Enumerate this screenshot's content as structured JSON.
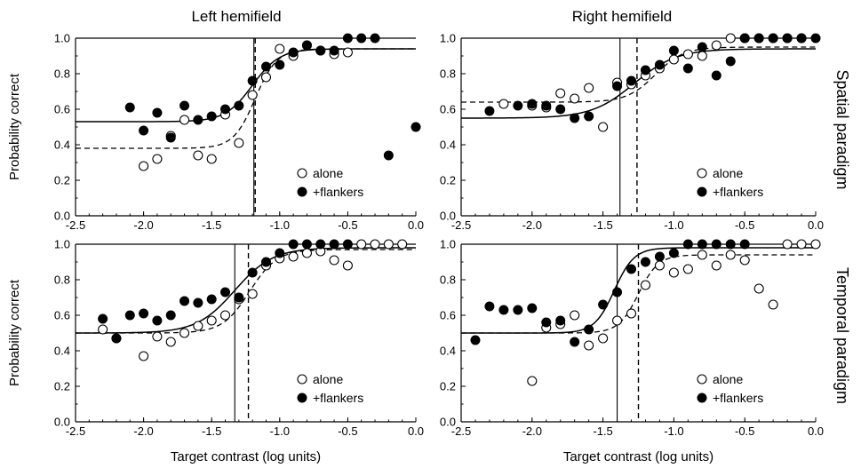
{
  "header": {
    "col_titles": [
      "Left hemifield",
      "Right hemifield"
    ],
    "row_titles": [
      "Spatial paradigm",
      "Temporal paradigm"
    ]
  },
  "colors": {
    "ink": "#000000",
    "background": "#ffffff"
  },
  "chart_data": [
    {
      "type": "scatter",
      "title": "",
      "xlabel": "",
      "ylabel": "Probability correct",
      "xlim": [
        -2.5,
        0.0
      ],
      "ylim": [
        0.0,
        1.0
      ],
      "xticks": [
        "-2.5",
        "-2.0",
        "-1.5",
        "-1.0",
        "-0.5",
        "0.0"
      ],
      "yticks": [
        "0.0",
        "0.2",
        "0.4",
        "0.6",
        "0.8",
        "1.0"
      ],
      "legend": {
        "position": "bottom-right",
        "items": [
          "alone",
          "+flankers"
        ]
      },
      "series": [
        {
          "name": "alone",
          "marker": "open-circle",
          "x": [
            -2.0,
            -1.9,
            -1.8,
            -1.7,
            -1.6,
            -1.5,
            -1.4,
            -1.3,
            -1.2,
            -1.1,
            -1.0,
            -0.9,
            -0.8,
            -0.7,
            -0.6,
            -0.5
          ],
          "y": [
            0.28,
            0.32,
            0.45,
            0.54,
            0.34,
            0.32,
            0.57,
            0.41,
            0.68,
            0.78,
            0.94,
            0.9,
            0.96,
            0.93,
            0.91,
            0.92
          ]
        },
        {
          "name": "+flankers",
          "marker": "filled-circle",
          "x": [
            -2.1,
            -2.0,
            -1.9,
            -1.8,
            -1.7,
            -1.6,
            -1.5,
            -1.4,
            -1.3,
            -1.2,
            -1.1,
            -1.0,
            -0.9,
            -0.8,
            -0.7,
            -0.6,
            -0.5,
            -0.4,
            -0.3,
            -0.2,
            0.0
          ],
          "y": [
            0.61,
            0.48,
            0.58,
            0.44,
            0.62,
            0.54,
            0.56,
            0.6,
            0.62,
            0.76,
            0.84,
            0.85,
            0.92,
            0.96,
            0.93,
            0.93,
            1.0,
            1.0,
            1.0,
            0.34,
            0.5
          ]
        }
      ],
      "fits": [
        {
          "series": "alone",
          "style": "dashed",
          "lower": 0.38,
          "upper": 0.94,
          "midpoint": -1.18,
          "scale": 0.08
        },
        {
          "series": "+flankers",
          "style": "solid",
          "lower": 0.53,
          "upper": 0.94,
          "midpoint": -1.2,
          "scale": 0.1
        }
      ],
      "thresholds": [
        {
          "series": "+flankers",
          "style": "solid",
          "x": -1.19
        },
        {
          "series": "alone",
          "style": "dashed",
          "x": -1.18
        }
      ]
    },
    {
      "type": "scatter",
      "title": "",
      "xlabel": "",
      "ylabel": "",
      "xlim": [
        -2.5,
        0.0
      ],
      "ylim": [
        0.0,
        1.0
      ],
      "xticks": [
        "-2.5",
        "-2.0",
        "-1.5",
        "-1.0",
        "-0.5",
        "0.0"
      ],
      "yticks": [
        "0.0",
        "0.2",
        "0.4",
        "0.6",
        "0.8",
        "1.0"
      ],
      "legend": {
        "position": "bottom-right",
        "items": [
          "alone",
          "+flankers"
        ]
      },
      "series": [
        {
          "name": "alone",
          "marker": "open-circle",
          "x": [
            -2.2,
            -2.0,
            -1.9,
            -1.8,
            -1.7,
            -1.6,
            -1.5,
            -1.4,
            -1.3,
            -1.2,
            -1.1,
            -1.0,
            -0.9,
            -0.8,
            -0.7,
            -0.6,
            -0.5,
            -0.4,
            -0.3,
            -0.2,
            -0.1
          ],
          "y": [
            0.63,
            0.62,
            0.61,
            0.69,
            0.66,
            0.72,
            0.5,
            0.75,
            0.74,
            0.79,
            0.83,
            0.88,
            0.91,
            0.9,
            0.96,
            1.0,
            1.0,
            1.0,
            1.0,
            1.0,
            1.0
          ]
        },
        {
          "name": "+flankers",
          "marker": "filled-circle",
          "x": [
            -2.3,
            -2.1,
            -2.0,
            -1.9,
            -1.8,
            -1.7,
            -1.6,
            -1.4,
            -1.3,
            -1.2,
            -1.1,
            -1.0,
            -0.9,
            -0.8,
            -0.7,
            -0.6,
            -0.5,
            -0.4,
            -0.3,
            -0.2,
            -0.1,
            0.0
          ],
          "y": [
            0.59,
            0.62,
            0.63,
            0.62,
            0.6,
            0.55,
            0.56,
            0.73,
            0.76,
            0.82,
            0.85,
            0.93,
            0.83,
            0.95,
            0.79,
            0.87,
            1.0,
            1.0,
            1.0,
            1.0,
            1.0,
            1.0
          ]
        }
      ],
      "fits": [
        {
          "series": "alone",
          "style": "dashed",
          "lower": 0.64,
          "upper": 0.95,
          "midpoint": -1.13,
          "scale": 0.1
        },
        {
          "series": "+flankers",
          "style": "solid",
          "lower": 0.55,
          "upper": 0.94,
          "midpoint": -1.28,
          "scale": 0.15
        }
      ],
      "thresholds": [
        {
          "series": "+flankers",
          "style": "solid",
          "x": -1.38
        },
        {
          "series": "alone",
          "style": "dashed",
          "x": -1.26
        }
      ]
    },
    {
      "type": "scatter",
      "title": "",
      "xlabel": "Target contrast (log units)",
      "ylabel": "Probability correct",
      "xlim": [
        -2.5,
        0.0
      ],
      "ylim": [
        0.0,
        1.0
      ],
      "xticks": [
        "-2.5",
        "-2.0",
        "-1.5",
        "-1.0",
        "-0.5",
        "0.0"
      ],
      "yticks": [
        "0.0",
        "0.2",
        "0.4",
        "0.6",
        "0.8",
        "1.0"
      ],
      "legend": {
        "position": "bottom-right",
        "items": [
          "alone",
          "+flankers"
        ]
      },
      "series": [
        {
          "name": "alone",
          "marker": "open-circle",
          "x": [
            -2.3,
            -2.2,
            -2.0,
            -1.9,
            -1.8,
            -1.7,
            -1.6,
            -1.5,
            -1.4,
            -1.3,
            -1.2,
            -1.1,
            -1.0,
            -0.9,
            -0.8,
            -0.7,
            -0.6,
            -0.5,
            -0.4,
            -0.3,
            -0.2,
            -0.1
          ],
          "y": [
            0.52,
            0.47,
            0.37,
            0.48,
            0.45,
            0.5,
            0.54,
            0.57,
            0.6,
            0.69,
            0.72,
            0.88,
            0.92,
            0.93,
            0.95,
            0.96,
            0.91,
            0.88,
            1.0,
            1.0,
            1.0,
            1.0
          ]
        },
        {
          "name": "+flankers",
          "marker": "filled-circle",
          "x": [
            -2.3,
            -2.2,
            -2.1,
            -2.0,
            -1.9,
            -1.8,
            -1.7,
            -1.6,
            -1.5,
            -1.4,
            -1.3,
            -1.2,
            -1.1,
            -1.0,
            -0.9,
            -0.8,
            -0.7,
            -0.6,
            -0.5
          ],
          "y": [
            0.58,
            0.47,
            0.6,
            0.61,
            0.57,
            0.6,
            0.68,
            0.67,
            0.69,
            0.73,
            0.7,
            0.84,
            0.9,
            0.95,
            1.0,
            1.0,
            1.0,
            1.0,
            1.0
          ]
        }
      ],
      "fits": [
        {
          "series": "alone",
          "style": "dashed",
          "lower": 0.5,
          "upper": 0.97,
          "midpoint": -1.22,
          "scale": 0.1
        },
        {
          "series": "+flankers",
          "style": "solid",
          "lower": 0.5,
          "upper": 0.98,
          "midpoint": -1.33,
          "scale": 0.14
        }
      ],
      "thresholds": [
        {
          "series": "+flankers",
          "style": "solid",
          "x": -1.33
        },
        {
          "series": "alone",
          "style": "dashed",
          "x": -1.23
        }
      ]
    },
    {
      "type": "scatter",
      "title": "",
      "xlabel": "Target contrast (log units)",
      "ylabel": "",
      "xlim": [
        -2.5,
        0.0
      ],
      "ylim": [
        0.0,
        1.0
      ],
      "xticks": [
        "-2.5",
        "-2.0",
        "-1.5",
        "-1.0",
        "-0.5",
        "0.0"
      ],
      "yticks": [
        "0.0",
        "0.2",
        "0.4",
        "0.6",
        "0.8",
        "1.0"
      ],
      "legend": {
        "position": "bottom-right",
        "items": [
          "alone",
          "+flankers"
        ]
      },
      "series": [
        {
          "name": "alone",
          "marker": "open-circle",
          "x": [
            -2.0,
            -1.9,
            -1.8,
            -1.7,
            -1.6,
            -1.5,
            -1.4,
            -1.3,
            -1.2,
            -1.1,
            -1.0,
            -0.9,
            -0.8,
            -0.7,
            -0.6,
            -0.5,
            -0.4,
            -0.3,
            -0.2,
            -0.1,
            0.0
          ],
          "y": [
            0.23,
            0.53,
            0.55,
            0.6,
            0.43,
            0.47,
            0.57,
            0.61,
            0.77,
            0.88,
            0.84,
            0.86,
            0.94,
            0.88,
            0.94,
            0.91,
            0.75,
            0.66,
            1.0,
            1.0,
            1.0
          ]
        },
        {
          "name": "+flankers",
          "marker": "filled-circle",
          "x": [
            -2.4,
            -2.3,
            -2.2,
            -2.1,
            -2.0,
            -1.9,
            -1.8,
            -1.7,
            -1.6,
            -1.5,
            -1.4,
            -1.3,
            -1.2,
            -1.1,
            -1.0,
            -0.9,
            -0.8,
            -0.7,
            -0.6,
            -0.5
          ],
          "y": [
            0.46,
            0.65,
            0.63,
            0.63,
            0.64,
            0.56,
            0.57,
            0.45,
            0.52,
            0.66,
            0.73,
            0.86,
            0.9,
            0.93,
            0.95,
            1.0,
            1.0,
            1.0,
            1.0,
            1.0
          ]
        }
      ],
      "fits": [
        {
          "series": "alone",
          "style": "dashed",
          "lower": 0.5,
          "upper": 0.94,
          "midpoint": -1.25,
          "scale": 0.07
        },
        {
          "series": "+flankers",
          "style": "solid",
          "lower": 0.5,
          "upper": 0.98,
          "midpoint": -1.42,
          "scale": 0.07
        }
      ],
      "thresholds": [
        {
          "series": "+flankers",
          "style": "solid",
          "x": -1.4
        },
        {
          "series": "alone",
          "style": "dashed",
          "x": -1.25
        }
      ]
    }
  ]
}
